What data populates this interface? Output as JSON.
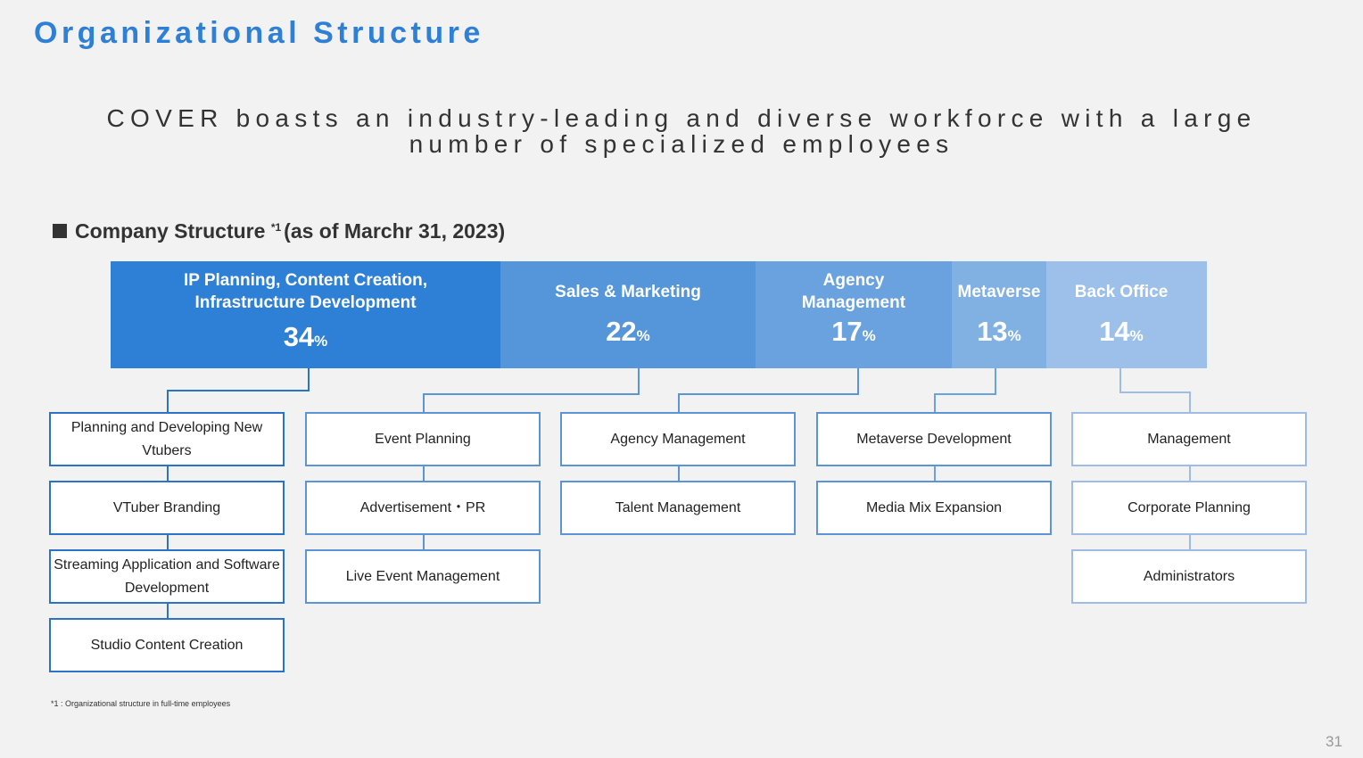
{
  "title": "Organizational Structure",
  "subtitle": "COVER boasts an industry-leading and diverse workforce with a large number of specialized employees",
  "section": {
    "label": "Company Structure",
    "footnote_marker": "*1",
    "date_note": "(as of Marchr 31, 2023)"
  },
  "departments": [
    {
      "name": "IP Planning, Content Creation, Infrastructure Development",
      "percent": "34",
      "color": "#2e7fd6",
      "teams": [
        "Planning and Developing New Vtubers",
        "VTuber Branding",
        "Streaming Application and Software Development",
        "Studio Content Creation"
      ]
    },
    {
      "name": "Sales & Marketing",
      "percent": "22",
      "color": "#5595da",
      "teams": [
        "Event Planning",
        "Advertisement・PR",
        "Live Event Management"
      ]
    },
    {
      "name": "Agency Management",
      "percent": "17",
      "color": "#6aa1df",
      "teams": [
        "Agency Management",
        "Talent Management"
      ]
    },
    {
      "name": "Metaverse",
      "percent": "13",
      "color": "#81b0e3",
      "teams": [
        "Metaverse Development",
        "Media Mix Expansion"
      ]
    },
    {
      "name": "Back Office",
      "percent": "14",
      "color": "#9cc0e9",
      "teams": [
        "Management",
        "Corporate Planning",
        "Administrators"
      ]
    }
  ],
  "percent_symbol": "%",
  "footnote": "*1 : Organizational structure in full-time employees",
  "page_number": "31"
}
